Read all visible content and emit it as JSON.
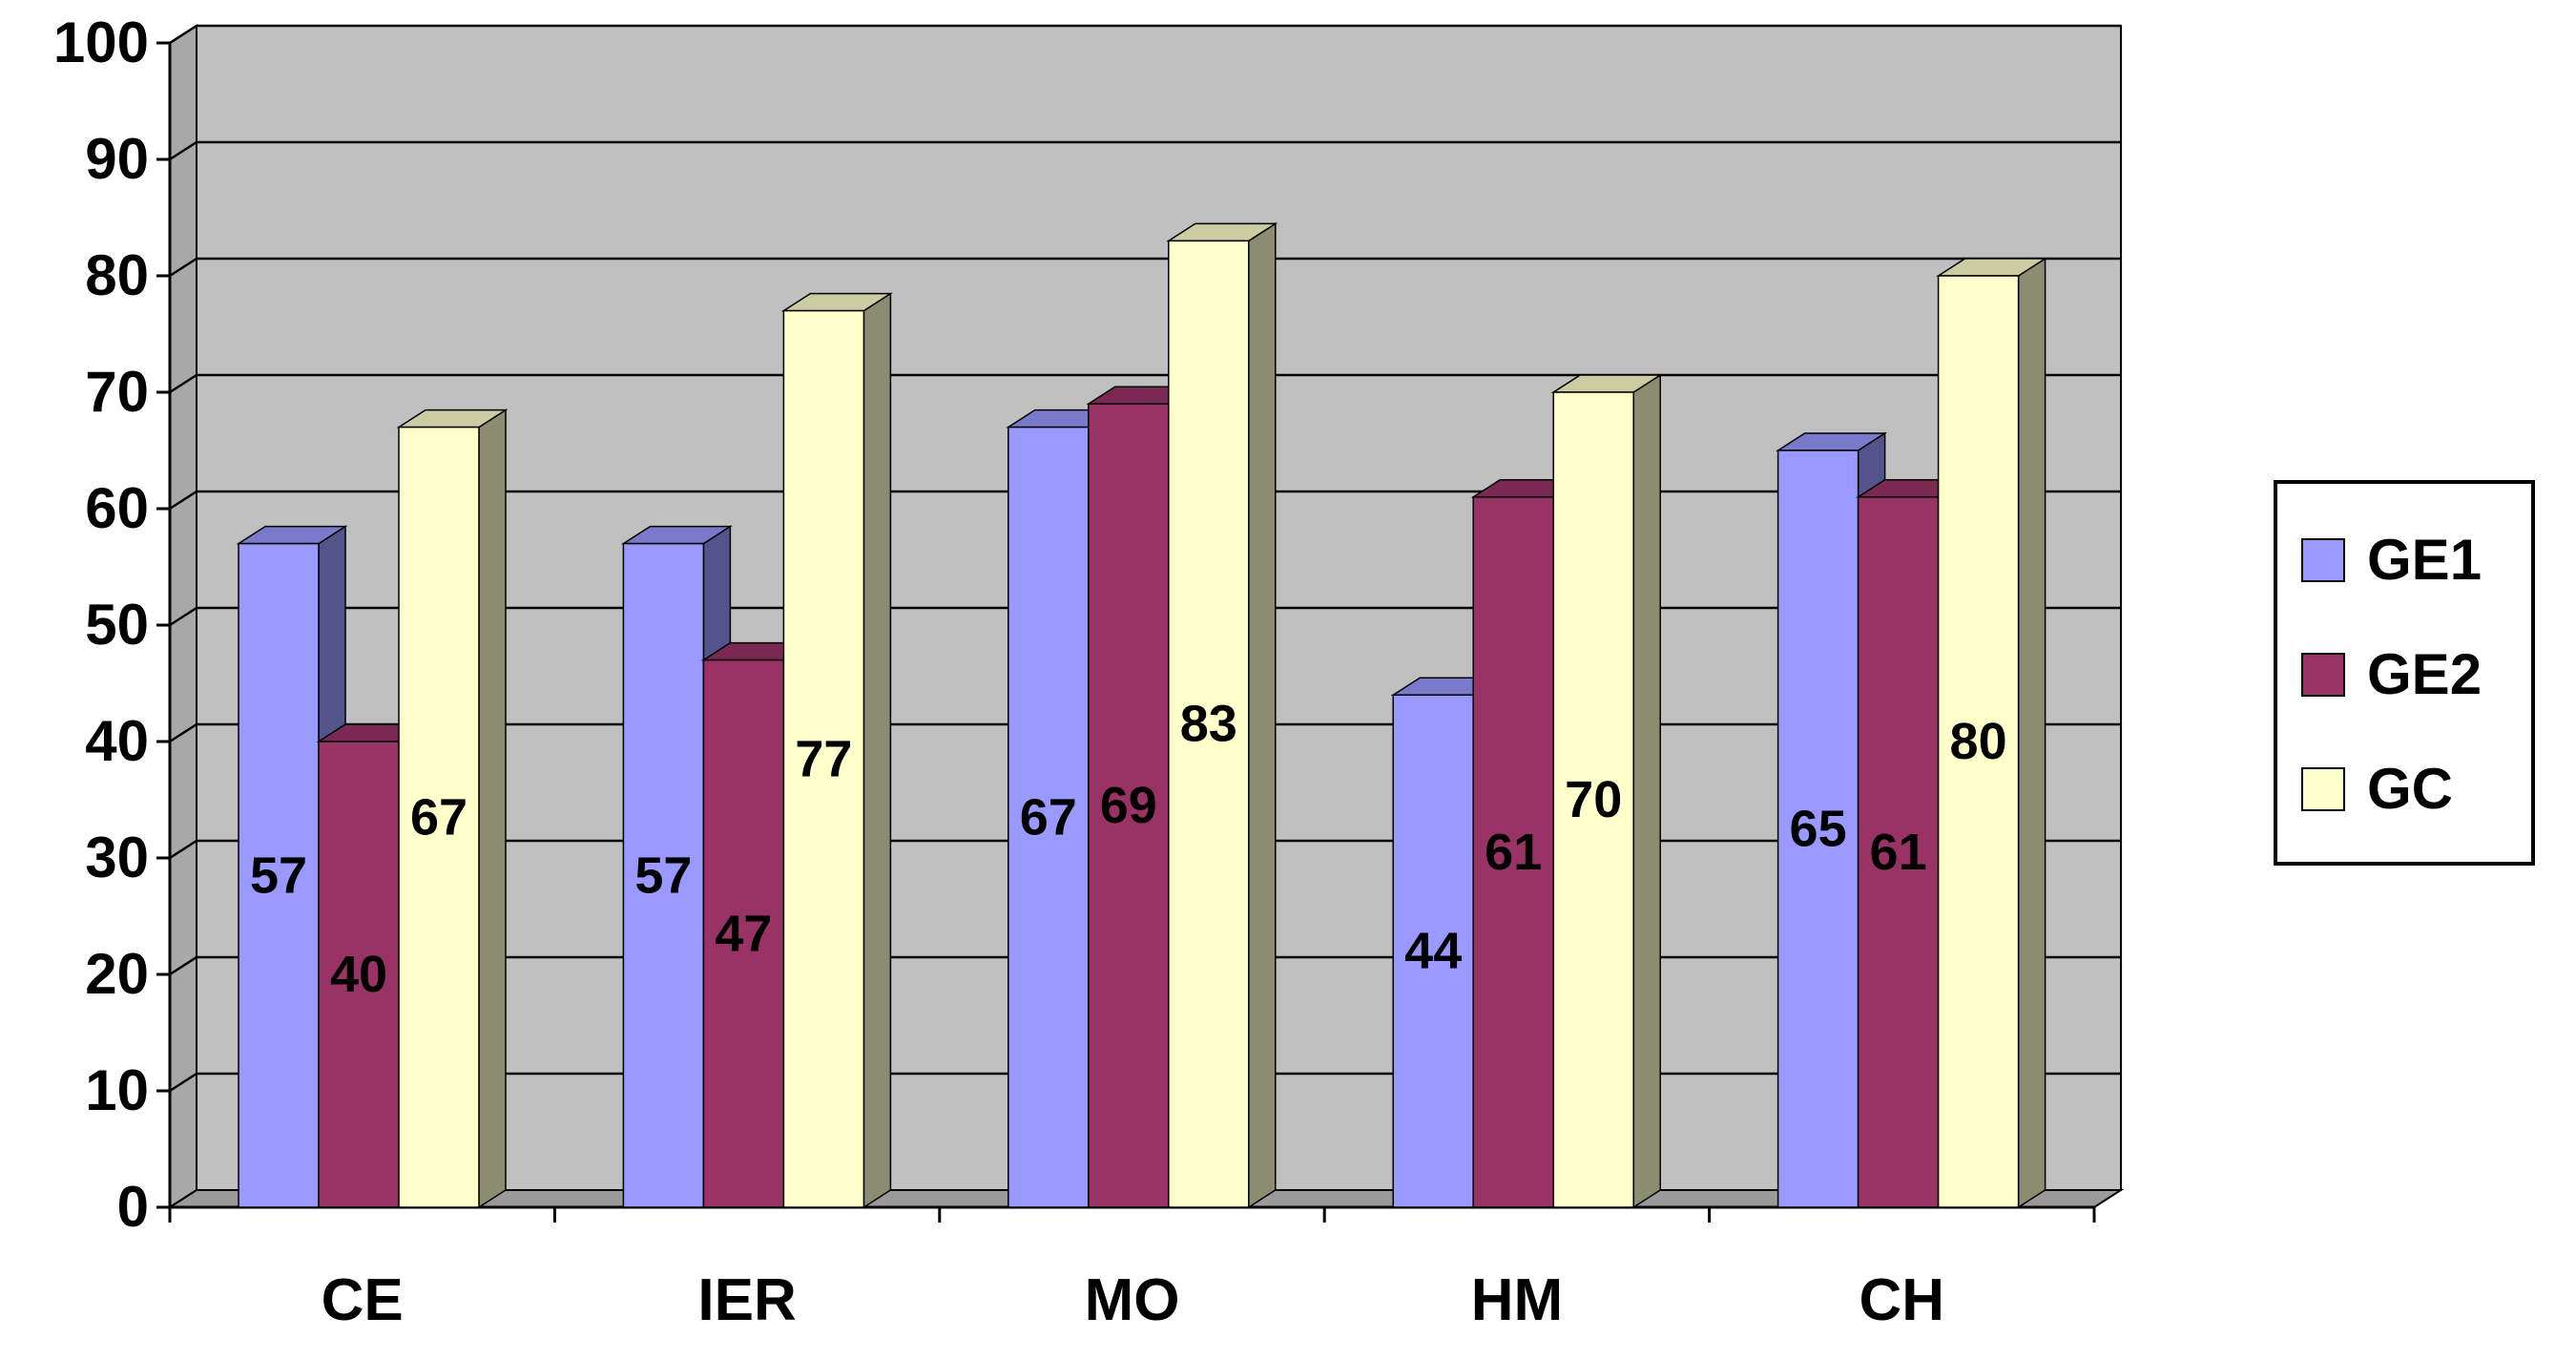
{
  "chart_data": {
    "type": "bar",
    "categories": [
      "CE",
      "IER",
      "MO",
      "HM",
      "CH"
    ],
    "series": [
      {
        "name": "GE1",
        "values": [
          57,
          57,
          67,
          44,
          65
        ]
      },
      {
        "name": "GE2",
        "values": [
          40,
          47,
          69,
          61,
          61
        ]
      },
      {
        "name": "GC",
        "values": [
          67,
          77,
          83,
          70,
          80
        ]
      }
    ],
    "title": "",
    "xlabel": "",
    "ylabel": "",
    "ylim": [
      0,
      100
    ],
    "yticks": [
      "0",
      "10",
      "20",
      "30",
      "40",
      "50",
      "60",
      "70",
      "80",
      "90",
      "100"
    ],
    "grid": true,
    "legend": "right",
    "style": "3d-clustered-bar",
    "colors": {
      "GE1": "#9999ff",
      "GE2": "#993366",
      "GC": "#ffffcc",
      "plot_background": "#c0c0c0",
      "gridline": "#000000"
    }
  }
}
